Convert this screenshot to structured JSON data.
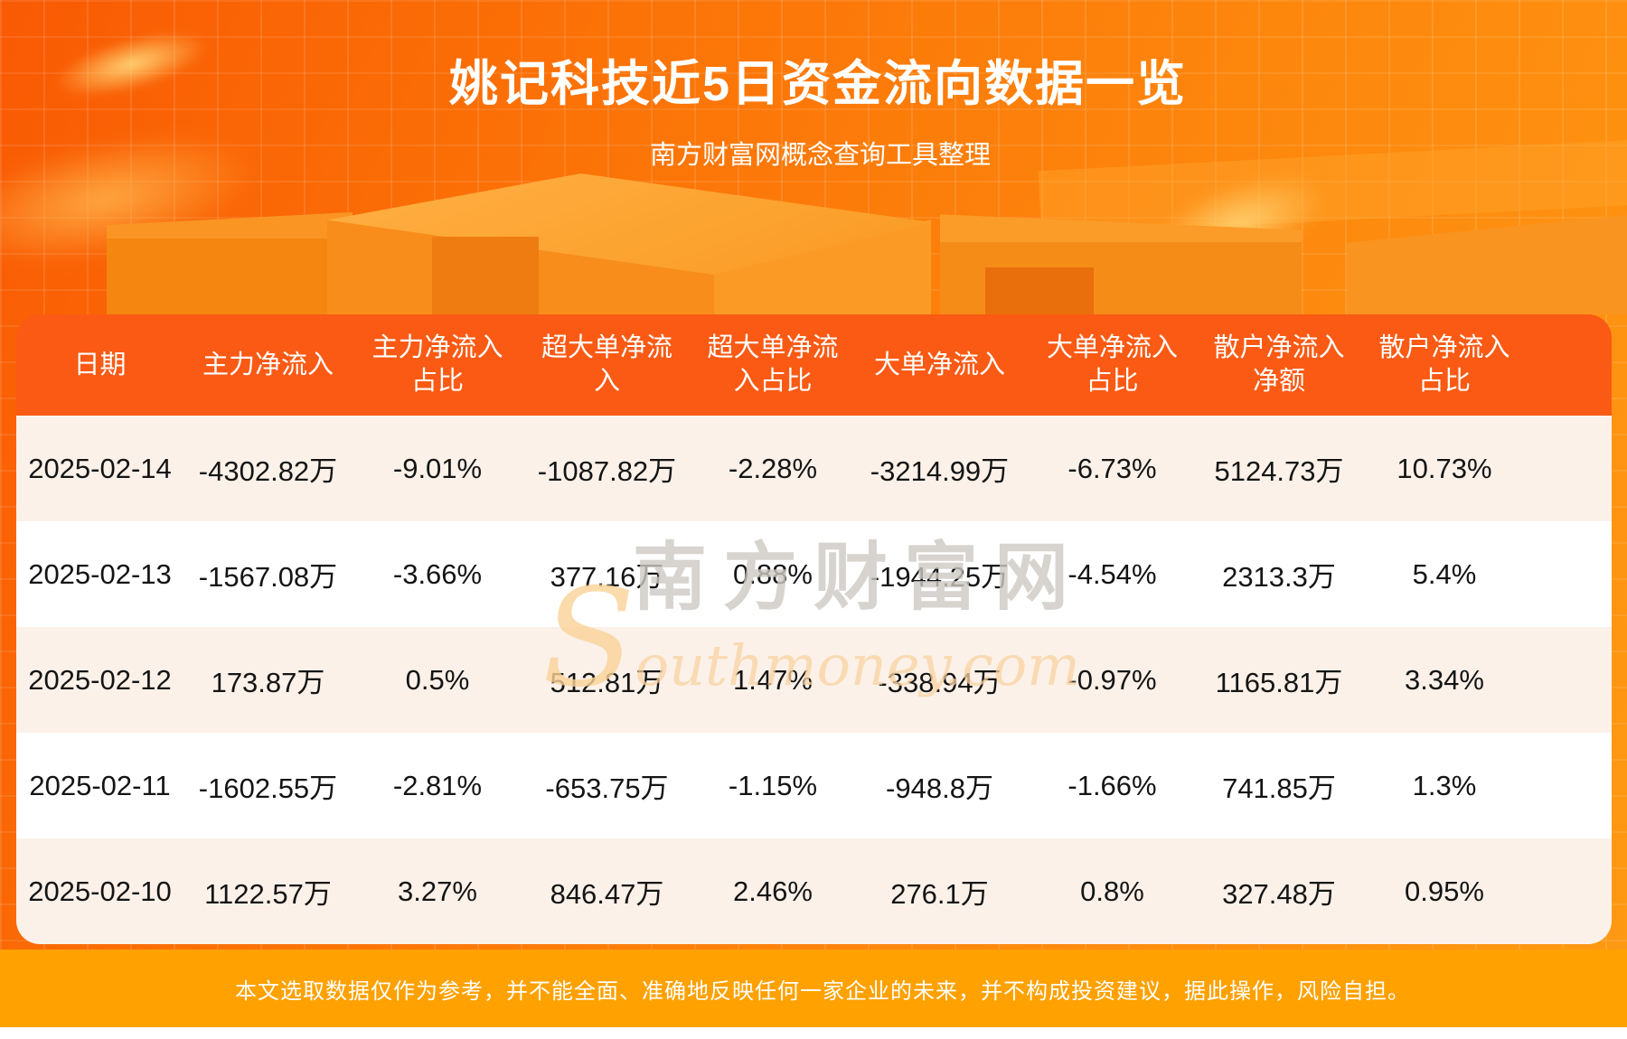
{
  "page": {
    "title": "姚记科技近5日资金流向数据一览",
    "subtitle": "南方财富网概念查询工具整理",
    "disclaimer": "本文选取数据仅作为参考，并不能全面、准确地反映任何一家企业的未来，并不构成投资建议，据此操作，风险自担。"
  },
  "watermark": {
    "brand_cn": "南方财富网",
    "brand_en": "Southmoney.com"
  },
  "colors": {
    "background_top": "#f95a04",
    "background_bottom": "#fe9a13",
    "table_header": "#fa5a14",
    "row_cream": "#fbf1e9",
    "row_white": "#ffffff",
    "footer_band": "#ffa101",
    "header_text": "#ffffff",
    "cell_text": "#141414"
  },
  "chart_data": {
    "type": "table",
    "title": "姚记科技近5日资金流向数据一览",
    "columns": [
      {
        "label": "日期",
        "lines": [
          "日期"
        ]
      },
      {
        "label": "主力净流入",
        "lines": [
          "主力净流入"
        ]
      },
      {
        "label": "主力净流入占比",
        "lines": [
          "主力净流入",
          "占比"
        ]
      },
      {
        "label": "超大单净流入",
        "lines": [
          "超大单净流",
          "入"
        ]
      },
      {
        "label": "超大单净流入占比",
        "lines": [
          "超大单净流",
          "入占比"
        ]
      },
      {
        "label": "大单净流入",
        "lines": [
          "大单净流入"
        ]
      },
      {
        "label": "大单净流入占比",
        "lines": [
          "大单净流入",
          "占比"
        ]
      },
      {
        "label": "散户净流入净额",
        "lines": [
          "散户净流入",
          "净额"
        ]
      },
      {
        "label": "散户净流入占比",
        "lines": [
          "散户净流入",
          "占比"
        ]
      }
    ],
    "rows": [
      [
        "2025-02-14",
        "-4302.82万",
        "-9.01%",
        "-1087.82万",
        "-2.28%",
        "-3214.99万",
        "-6.73%",
        "5124.73万",
        "10.73%"
      ],
      [
        "2025-02-13",
        "-1567.08万",
        "-3.66%",
        "377.16万",
        "0.88%",
        "-1944.25万",
        "-4.54%",
        "2313.3万",
        "5.4%"
      ],
      [
        "2025-02-12",
        "173.87万",
        "0.5%",
        "512.81万",
        "1.47%",
        "-338.94万",
        "-0.97%",
        "1165.81万",
        "3.34%"
      ],
      [
        "2025-02-11",
        "-1602.55万",
        "-2.81%",
        "-653.75万",
        "-1.15%",
        "-948.8万",
        "-1.66%",
        "741.85万",
        "1.3%"
      ],
      [
        "2025-02-10",
        "1122.57万",
        "3.27%",
        "846.47万",
        "2.46%",
        "276.1万",
        "0.8%",
        "327.48万",
        "0.95%"
      ]
    ]
  }
}
